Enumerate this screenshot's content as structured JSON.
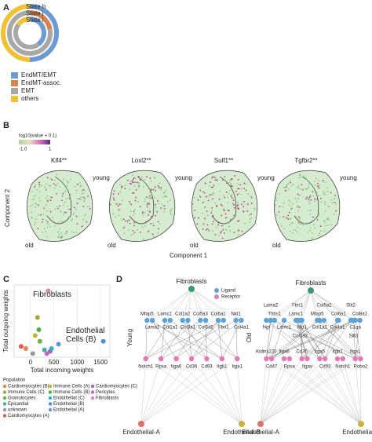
{
  "panel_labels": [
    "A",
    "B",
    "C",
    "D"
  ],
  "chart_data": [
    {
      "type": "donut",
      "categories": [
        "EndMT/EMT",
        "EndMT-assoc.",
        "EMT",
        "others"
      ],
      "colors": [
        "#6b9bd2",
        "#d9824f",
        "#a8a8a8",
        "#f0c233"
      ],
      "series": [
        {
          "name": "State h",
          "values": [
            50,
            0,
            0,
            50
          ]
        },
        {
          "name": "State j",
          "values": [
            0,
            22,
            78,
            0
          ]
        },
        {
          "name": "State i",
          "values": [
            40,
            0,
            45,
            15
          ]
        }
      ]
    },
    {
      "type": "scatter",
      "xlabel": "Total incoming weights",
      "ylabel": "Total outgoing weights",
      "xlim": [
        -350,
        1700
      ],
      "ylim": [
        0,
        100
      ],
      "xticks": [
        0,
        500,
        1000,
        1500
      ],
      "legend_title": "Population",
      "annotations": [
        "Fibroblasts",
        "Endothelial Cells (B)"
      ],
      "series": [
        {
          "name": "Cardiomyocytes (B)",
          "color": "#e8834a",
          "x": [
            -100
          ],
          "y": [
            12
          ]
        },
        {
          "name": "Immune Cells (C)",
          "color": "#a6a63a",
          "x": [
            150
          ],
          "y": [
            55
          ]
        },
        {
          "name": "Granulocytes",
          "color": "#6ab04c",
          "x": [
            200
          ],
          "y": [
            22
          ]
        },
        {
          "name": "Epicardial",
          "color": "#3fb39b",
          "x": [
            300
          ],
          "y": [
            10
          ]
        },
        {
          "name": "unknown",
          "color": "#999999",
          "x": [
            50
          ],
          "y": [
            5
          ]
        },
        {
          "name": "Cardiomyocytes (A)",
          "color": "#e05a4e",
          "x": [
            -200
          ],
          "y": [
            15
          ]
        },
        {
          "name": "Immune Cells (A)",
          "color": "#c5b32a",
          "x": [
            100
          ],
          "y": [
            30
          ]
        },
        {
          "name": "Immune Cells (B)",
          "color": "#4caf50",
          "x": [
            180
          ],
          "y": [
            38
          ]
        },
        {
          "name": "Endothelial (C)",
          "color": "#2bb5c9",
          "x": [
            450
          ],
          "y": [
            12
          ]
        },
        {
          "name": "Endothelial (B)",
          "color": "#4a90d9",
          "x": [
            1560
          ],
          "y": [
            22
          ]
        },
        {
          "name": "Endothelial (A)",
          "color": "#6c8fd6",
          "x": [
            600
          ],
          "y": [
            18
          ]
        },
        {
          "name": "Cardiomyocytes (C)",
          "color": "#9b6cc9",
          "x": [
            420
          ],
          "y": [
            8
          ]
        },
        {
          "name": "Pericytes",
          "color": "#c46bc9",
          "x": [
            350
          ],
          "y": [
            5
          ]
        },
        {
          "name": "Fibroblasts",
          "color": "#e87bb4",
          "x": [
            380
          ],
          "y": [
            92
          ]
        }
      ]
    }
  ],
  "panel_b": {
    "colorbar_label": "log10(value + 0.1)",
    "colorbar_ticks": [
      "-1.0",
      "1"
    ],
    "genes": [
      "Klf4**",
      "Loxl2**",
      "Sulf1**",
      "Tgfbr2**"
    ],
    "group_labels": [
      "young",
      "old"
    ],
    "xlabel": "Component 1",
    "ylabel": "Component 2"
  },
  "panel_d": {
    "legend": [
      "Ligand",
      "Receptor"
    ],
    "networks": [
      {
        "side_label": "Young",
        "source": "Fibroblasts",
        "ligand_rows": [
          [
            "Mfap5",
            "Lamc1",
            "Col1a2",
            "Col5a3",
            "Col6a1",
            "Nid1"
          ],
          [
            "Lama2",
            "Col1a1",
            "Col3a1",
            "Col6a2",
            "Fbn1",
            "Col4a1"
          ]
        ],
        "receptor_rows": [
          [
            "Notch1",
            "Rpsa",
            "Itga6",
            "Cd36",
            "Cd93",
            "Itgb1",
            "Itga1"
          ]
        ],
        "targets": [
          "Endothelial-A",
          "Endothelial-B"
        ]
      },
      {
        "side_label": "Old",
        "source": "Fibroblasts",
        "ligand_rows": [
          [
            "Lama2",
            "Fbn1",
            "Col5a2",
            "Slit2"
          ],
          [
            "Thbs1",
            "Lamc1",
            "Mfap5",
            "Col6a1",
            "Col8a1"
          ],
          [
            "Ngf",
            "Lamc1",
            "Nid1",
            "Col1a2",
            "Col4a1",
            "C1qa"
          ],
          [
            "Col1a2",
            "Slit3"
          ]
        ],
        "receptor_rows": [
          [
            "Kidins220",
            "Itga6",
            "Cd36",
            "Itga5",
            "Itgb1",
            "Itga1"
          ],
          [
            "Cd47",
            "Rpsa",
            "Itgav",
            "Cd93",
            "Notch1",
            "Robo2"
          ]
        ],
        "targets": [
          "Endothelial-A",
          "Endothelial-B"
        ]
      }
    ]
  }
}
